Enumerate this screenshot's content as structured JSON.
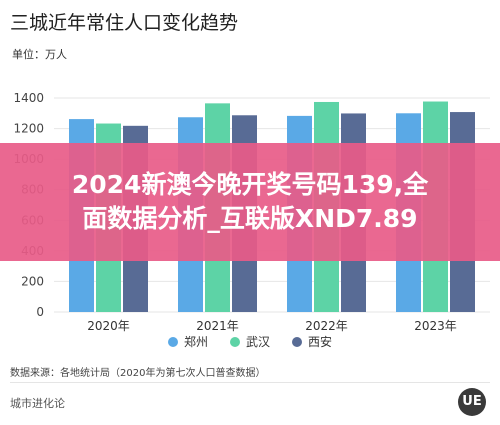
{
  "title": "三城近年常住人口变化趋势",
  "unit_label": "单位：万人",
  "overlay": {
    "line1": "2024新澳今晚开奖号码139,全",
    "line2": "面数据分析_互联版XND7.89"
  },
  "source": "数据来源：各地统计局（2020年为第七次人口普查数据）",
  "brand": "城市进化论",
  "logo_text": "UE",
  "colors": {
    "zhengzhou": "#5aa9e6",
    "wuhan": "#5dd3a6",
    "xian": "#586b95",
    "grid": "#e6e6e6"
  },
  "chart_data": {
    "type": "bar",
    "categories": [
      "2020年",
      "2021年",
      "2022年",
      "2023年"
    ],
    "series": [
      {
        "name": "郑州",
        "values": [
          1262,
          1274,
          1283,
          1300
        ]
      },
      {
        "name": "武汉",
        "values": [
          1233,
          1365,
          1374,
          1377
        ]
      },
      {
        "name": "西安",
        "values": [
          1218,
          1287,
          1299,
          1308
        ]
      }
    ],
    "ylim": [
      0,
      1400
    ],
    "yticks": [
      0,
      200,
      400,
      600,
      800,
      1000,
      1200,
      1400
    ],
    "grid": true,
    "legend": "bottom"
  }
}
